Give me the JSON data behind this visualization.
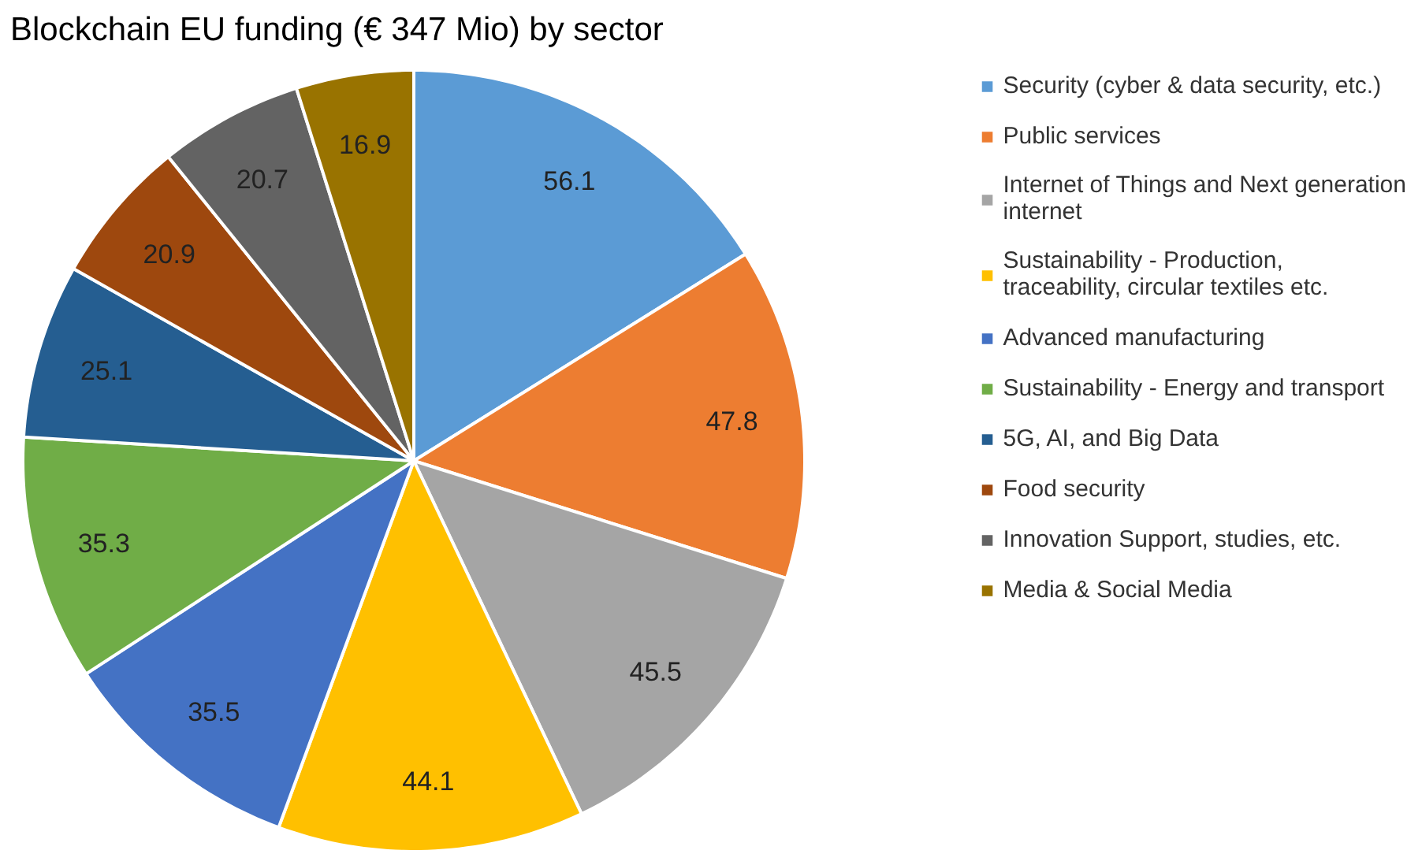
{
  "chart_data": {
    "type": "pie",
    "title": "Blockchain EU funding (€ 347 Mio) by sector",
    "categories": [
      "Security (cyber & data security, etc.)",
      "Public services",
      "Internet of Things and Next generation internet",
      "Sustainability - Production, traceability, circular textiles etc.",
      "Advanced manufacturing",
      "Sustainability - Energy and transport",
      "5G, AI, and Big Data",
      "Food security",
      "Innovation Support, studies, etc.",
      "Media & Social Media"
    ],
    "values": [
      56.1,
      47.8,
      45.5,
      44.1,
      35.5,
      35.3,
      25.1,
      20.9,
      20.7,
      16.9
    ],
    "colors": [
      "#5b9bd5",
      "#ed7d31",
      "#a5a5a5",
      "#ffc000",
      "#4472c4",
      "#70ad47",
      "#255e91",
      "#9e480e",
      "#636363",
      "#997300"
    ],
    "data_labels": true,
    "legend": "right"
  }
}
